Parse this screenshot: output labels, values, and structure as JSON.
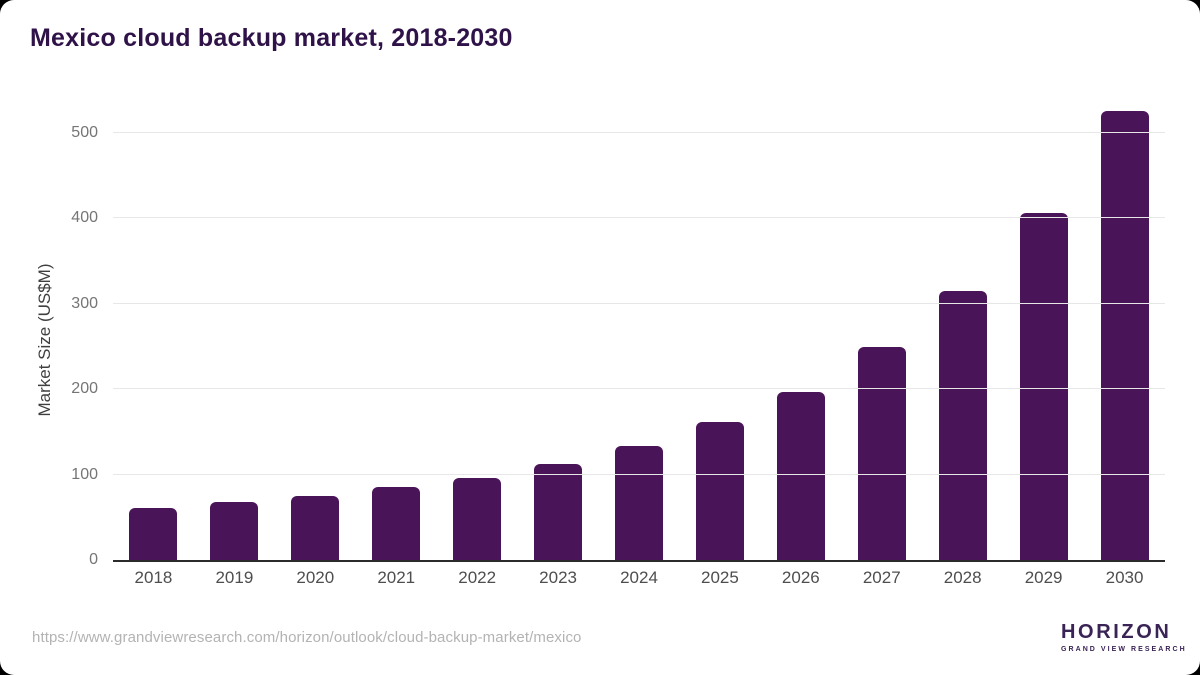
{
  "page": {
    "title": "Mexico cloud backup market, 2018-2030",
    "source_url": "https://www.grandviewresearch.com/horizon/outlook/cloud-backup-market/mexico"
  },
  "chart_data": {
    "type": "bar",
    "title": "Mexico cloud backup market, 2018-2030",
    "categories": [
      "2018",
      "2019",
      "2020",
      "2021",
      "2022",
      "2023",
      "2024",
      "2025",
      "2026",
      "2027",
      "2028",
      "2029",
      "2030"
    ],
    "values": [
      61,
      68,
      75,
      85,
      96,
      112,
      133,
      162,
      197,
      249,
      315,
      406,
      526
    ],
    "xlabel": "",
    "ylabel": "Market Size (US$M)",
    "ylim": [
      0,
      500
    ],
    "yticks": [
      0,
      100,
      200,
      300,
      400,
      500
    ],
    "grid": true,
    "legend": "none",
    "bar_color": "#4a1458"
  },
  "branding": {
    "logo_name": "HORIZON",
    "logo_subtitle": "GRAND VIEW RESEARCH"
  },
  "colors": {
    "title_text": "#2e1248",
    "bar": "#4a1458",
    "gridline": "#e7e7e7",
    "axis_line": "#2b2b2b",
    "x_tick_text": "#4e4e4e",
    "y_tick_text": "#757575",
    "url_text": "#b3b3b3",
    "logo_purple": "#241b40",
    "logo_blue": "#5fc8f8"
  }
}
